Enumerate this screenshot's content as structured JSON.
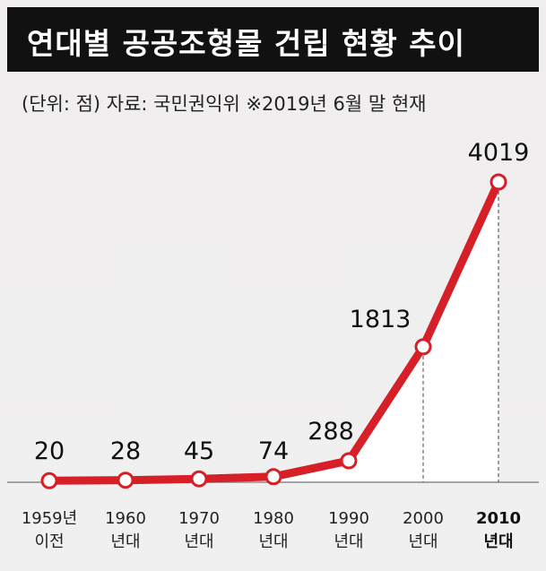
{
  "title": "연대별 공공조형물 건립 현황 추이",
  "subtitle": "(단위: 점) 자료: 국민권익위 ※2019년 6월 말 현재",
  "colors": {
    "line": "#d61f26",
    "background": "#f0eeee",
    "title_bar": "#111111",
    "title_text": "#ffffff",
    "area": "#ffffff",
    "marker_fill": "#ffffff"
  },
  "chart_data": {
    "type": "line",
    "title": "연대별 공공조형물 건립 현황 추이",
    "subtitle": "(단위: 점) 자료: 국민권익위 ※2019년 6월 말 현재",
    "categories": [
      [
        "1959년",
        "이전"
      ],
      [
        "1960",
        "년대"
      ],
      [
        "1970",
        "년대"
      ],
      [
        "1980",
        "년대"
      ],
      [
        "1990",
        "년대"
      ],
      [
        "2000",
        "년대"
      ],
      [
        "2010",
        "년대"
      ]
    ],
    "values": [
      20,
      28,
      45,
      74,
      288,
      1813,
      4019
    ],
    "data_labels": [
      "20",
      "28",
      "45",
      "74",
      "288",
      "1813",
      "4019"
    ],
    "ylim": [
      0,
      4019
    ],
    "highlighted_category": 6,
    "grid": false,
    "legend": "none"
  }
}
